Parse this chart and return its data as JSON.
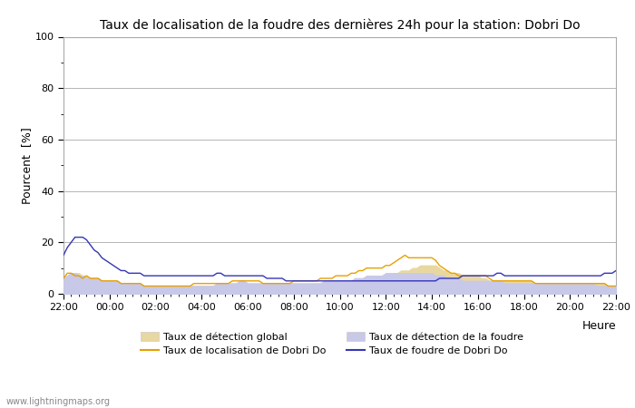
{
  "title": "Taux de localisation de la foudre des dernières 24h pour la station: Dobri Do",
  "xlabel": "Heure",
  "ylabel": "Pourcent  [%]",
  "ylim": [
    0,
    100
  ],
  "yticks": [
    0,
    20,
    40,
    60,
    80,
    100
  ],
  "yticks_minor": [
    10,
    30,
    50,
    70,
    90
  ],
  "x_labels": [
    "22:00",
    "00:00",
    "02:00",
    "04:00",
    "06:00",
    "08:00",
    "10:00",
    "12:00",
    "14:00",
    "16:00",
    "18:00",
    "20:00",
    "22:00"
  ],
  "watermark": "www.lightningmaps.org",
  "color_global_fill": "#e8d8a0",
  "color_foudre_fill": "#c8c8e8",
  "color_localisation_line": "#e8a000",
  "color_foudre_line": "#3535b8",
  "n_points": 145,
  "global_detection": [
    6,
    7,
    8,
    8,
    8,
    7,
    7,
    6,
    6,
    6,
    5,
    5,
    5,
    5,
    5,
    4,
    4,
    4,
    4,
    4,
    4,
    3,
    3,
    3,
    3,
    3,
    3,
    3,
    3,
    3,
    3,
    3,
    3,
    3,
    3,
    3,
    3,
    3,
    3,
    3,
    4,
    4,
    4,
    4,
    4,
    4,
    5,
    5,
    4,
    4,
    4,
    4,
    4,
    4,
    4,
    4,
    4,
    4,
    4,
    4,
    4,
    4,
    4,
    4,
    4,
    4,
    4,
    4,
    5,
    5,
    5,
    5,
    5,
    5,
    5,
    5,
    6,
    6,
    6,
    6,
    6,
    6,
    6,
    6,
    7,
    7,
    8,
    8,
    9,
    9,
    9,
    10,
    10,
    11,
    11,
    11,
    11,
    11,
    10,
    9,
    9,
    8,
    8,
    8,
    7,
    7,
    7,
    7,
    7,
    6,
    6,
    5,
    5,
    5,
    5,
    5,
    5,
    5,
    5,
    5,
    5,
    5,
    5,
    4,
    4,
    4,
    4,
    4,
    4,
    4,
    4,
    4,
    4,
    4,
    4,
    4,
    4,
    4,
    4,
    4,
    4,
    4,
    3,
    3,
    3
  ],
  "foudre_detection": [
    6,
    7,
    8,
    8,
    7,
    7,
    6,
    6,
    6,
    6,
    5,
    5,
    5,
    5,
    5,
    4,
    4,
    4,
    4,
    4,
    4,
    3,
    3,
    3,
    3,
    3,
    3,
    3,
    3,
    3,
    3,
    3,
    3,
    3,
    3,
    3,
    3,
    3,
    3,
    3,
    4,
    4,
    4,
    4,
    4,
    4,
    5,
    5,
    4,
    4,
    4,
    4,
    4,
    4,
    4,
    4,
    4,
    4,
    4,
    4,
    4,
    4,
    4,
    4,
    4,
    4,
    4,
    4,
    5,
    5,
    5,
    5,
    5,
    5,
    5,
    5,
    6,
    6,
    6,
    7,
    7,
    7,
    7,
    7,
    8,
    8,
    8,
    8,
    8,
    8,
    8,
    8,
    8,
    8,
    8,
    8,
    8,
    7,
    7,
    7,
    6,
    6,
    6,
    6,
    5,
    5,
    5,
    5,
    5,
    5,
    5,
    5,
    5,
    5,
    5,
    4,
    4,
    4,
    4,
    4,
    4,
    4,
    4,
    4,
    4,
    4,
    4,
    4,
    4,
    4,
    4,
    4,
    4,
    4,
    4,
    4,
    4,
    4,
    4,
    3,
    3,
    3,
    3,
    3,
    3
  ],
  "localisation_dobri": [
    6,
    8,
    8,
    7,
    7,
    6,
    7,
    6,
    6,
    6,
    5,
    5,
    5,
    5,
    5,
    4,
    4,
    4,
    4,
    4,
    4,
    3,
    3,
    3,
    3,
    3,
    3,
    3,
    3,
    3,
    3,
    3,
    3,
    3,
    4,
    4,
    4,
    4,
    4,
    4,
    4,
    4,
    4,
    4,
    5,
    5,
    5,
    5,
    5,
    5,
    5,
    5,
    4,
    4,
    4,
    4,
    4,
    4,
    4,
    4,
    5,
    5,
    5,
    5,
    5,
    5,
    5,
    6,
    6,
    6,
    6,
    7,
    7,
    7,
    7,
    8,
    8,
    9,
    9,
    10,
    10,
    10,
    10,
    10,
    11,
    11,
    12,
    13,
    14,
    15,
    14,
    14,
    14,
    14,
    14,
    14,
    14,
    13,
    11,
    10,
    9,
    8,
    8,
    7,
    7,
    7,
    7,
    7,
    7,
    7,
    7,
    6,
    5,
    5,
    5,
    5,
    5,
    5,
    5,
    5,
    5,
    5,
    5,
    4,
    4,
    4,
    4,
    4,
    4,
    4,
    4,
    4,
    4,
    4,
    4,
    4,
    4,
    4,
    4,
    4,
    4,
    4,
    3,
    3,
    3
  ],
  "foudre_dobri": [
    15,
    18,
    20,
    22,
    22,
    22,
    21,
    19,
    17,
    16,
    14,
    13,
    12,
    11,
    10,
    9,
    9,
    8,
    8,
    8,
    8,
    7,
    7,
    7,
    7,
    7,
    7,
    7,
    7,
    7,
    7,
    7,
    7,
    7,
    7,
    7,
    7,
    7,
    7,
    7,
    8,
    8,
    7,
    7,
    7,
    7,
    7,
    7,
    7,
    7,
    7,
    7,
    7,
    6,
    6,
    6,
    6,
    6,
    5,
    5,
    5,
    5,
    5,
    5,
    5,
    5,
    5,
    5,
    5,
    5,
    5,
    5,
    5,
    5,
    5,
    5,
    5,
    5,
    5,
    5,
    5,
    5,
    5,
    5,
    5,
    5,
    5,
    5,
    5,
    5,
    5,
    5,
    5,
    5,
    5,
    5,
    5,
    5,
    6,
    6,
    6,
    6,
    6,
    6,
    7,
    7,
    7,
    7,
    7,
    7,
    7,
    7,
    7,
    8,
    8,
    7,
    7,
    7,
    7,
    7,
    7,
    7,
    7,
    7,
    7,
    7,
    7,
    7,
    7,
    7,
    7,
    7,
    7,
    7,
    7,
    7,
    7,
    7,
    7,
    7,
    7,
    8,
    8,
    8,
    9
  ]
}
